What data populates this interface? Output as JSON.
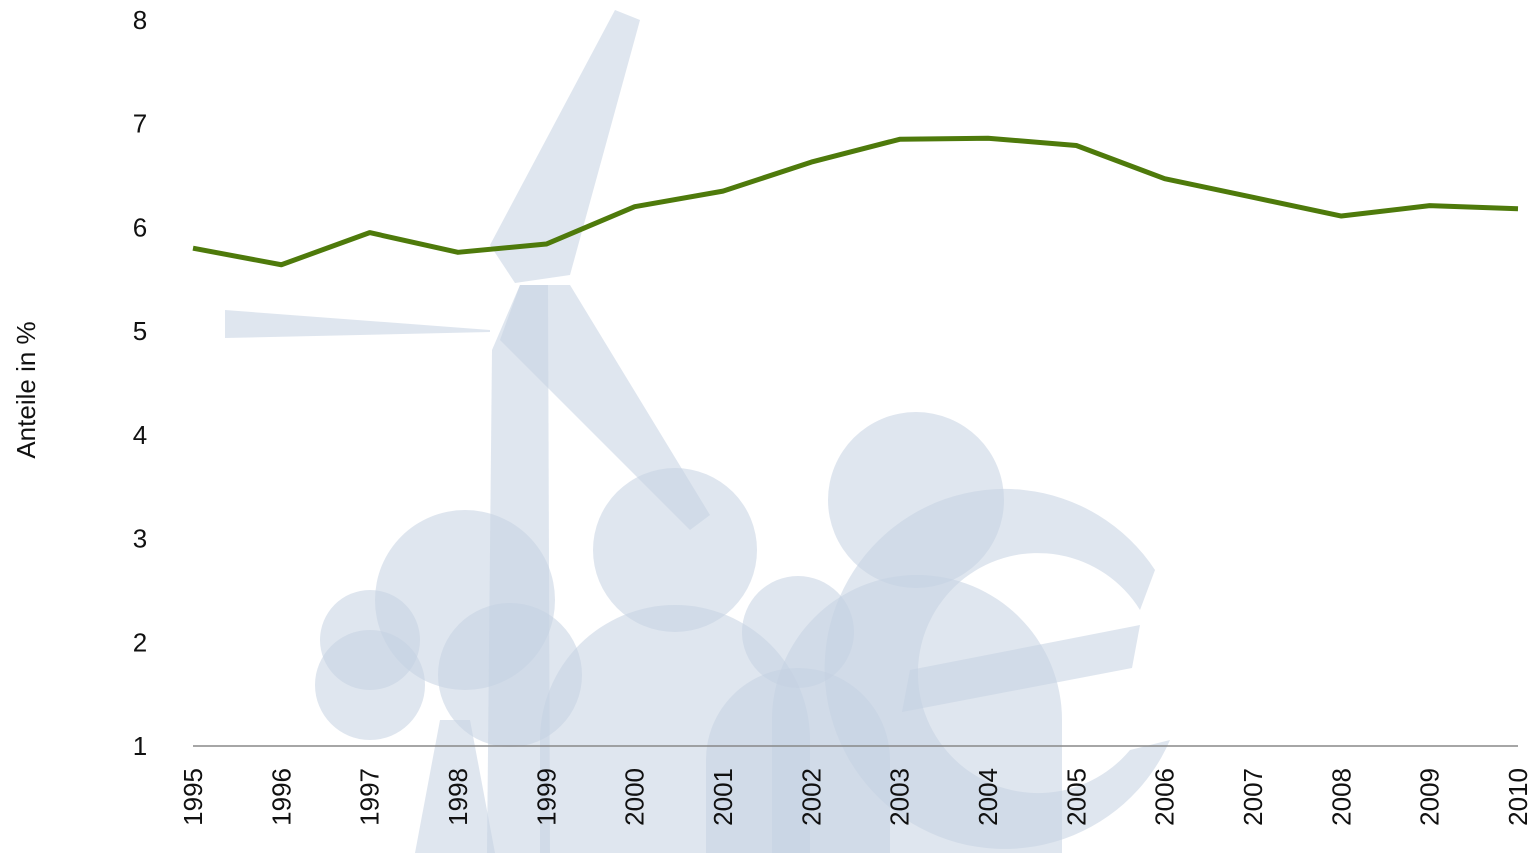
{
  "chart_data": {
    "type": "line",
    "y_label": "Anteile in %",
    "categories": [
      "1995",
      "1996",
      "1997",
      "1998",
      "1999",
      "2000",
      "2001",
      "2002",
      "2003",
      "2004",
      "2005",
      "2006",
      "2007",
      "2008",
      "2009",
      "2010"
    ],
    "series": [
      {
        "color": "#4e7a0b",
        "values": [
          5.8,
          5.64,
          5.95,
          5.76,
          5.84,
          6.2,
          6.35,
          6.63,
          6.85,
          6.86,
          6.79,
          6.47,
          6.29,
          6.11,
          6.21,
          6.18
        ]
      }
    ],
    "ylim": [
      1,
      8
    ],
    "yticks": [
      1,
      2,
      3,
      4,
      5,
      6,
      7,
      8
    ],
    "grid": false
  }
}
